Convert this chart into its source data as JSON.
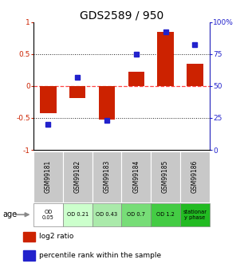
{
  "title": "GDS2589 / 950",
  "samples": [
    "GSM99181",
    "GSM99182",
    "GSM99183",
    "GSM99184",
    "GSM99185",
    "GSM99186"
  ],
  "log2_ratio": [
    -0.42,
    -0.19,
    -0.52,
    0.22,
    0.84,
    0.35
  ],
  "percentile_rank": [
    20,
    57,
    23,
    75,
    92,
    82
  ],
  "age_labels": [
    "OD\n0.05",
    "OD 0.21",
    "OD 0.43",
    "OD 0.7",
    "OD 1.2",
    "stationar\ny phase"
  ],
  "age_colors": [
    "#ffffff",
    "#ccffcc",
    "#aaeaaa",
    "#77dd77",
    "#44cc44",
    "#22bb22"
  ],
  "bar_color_red": "#cc2200",
  "bar_color_blue": "#2222cc",
  "ylim_left": [
    -1.0,
    1.0
  ],
  "ylim_right": [
    0,
    100
  ],
  "yticks_left": [
    -1,
    -0.5,
    0,
    0.5,
    1
  ],
  "ytick_labels_left": [
    "-1",
    "-0.5",
    "0",
    "0.5",
    "1"
  ],
  "yticks_right": [
    0,
    25,
    50,
    75,
    100
  ],
  "ytick_labels_right": [
    "0",
    "25",
    "50",
    "75",
    "100%"
  ],
  "dotted_hlines": [
    -0.5,
    0.5
  ],
  "zero_hline_color": "#ff4444",
  "dotted_hline_color": "#222222",
  "legend_red": "log2 ratio",
  "legend_blue": "percentile rank within the sample",
  "age_label": "age",
  "title_fontsize": 10,
  "tick_fontsize": 6.5,
  "sample_row_color": "#c8c8c8",
  "sample_text_color": "#000000",
  "bg_color": "#ffffff"
}
